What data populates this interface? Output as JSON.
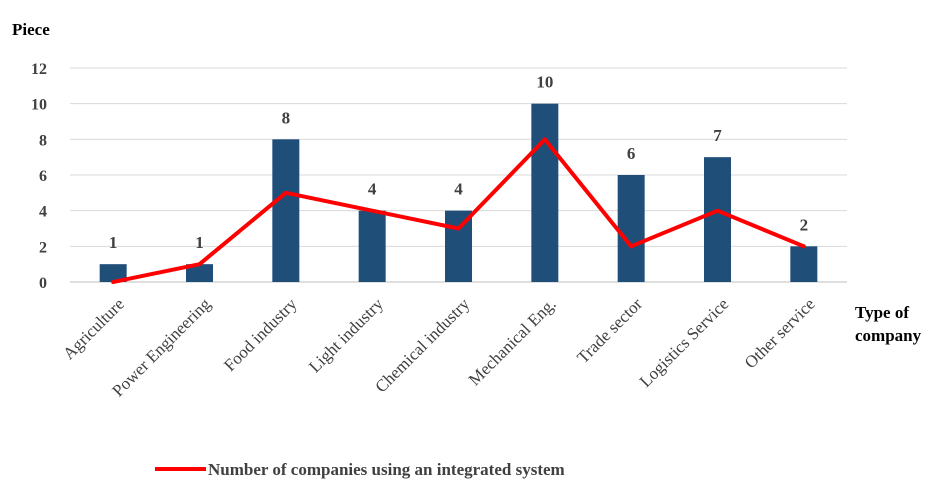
{
  "chart_data": {
    "type": "bar",
    "ylabel": "Piece",
    "xlabel": "Type of company",
    "xlabel_lines": [
      "Type of",
      "company"
    ],
    "ylim": [
      0,
      12
    ],
    "yticks": [
      0,
      2,
      4,
      6,
      8,
      10,
      12
    ],
    "grid": true,
    "categories": [
      "Agriculture",
      "Power Engineering",
      "Food industry",
      "Light industry",
      "Chemical industry",
      "Mechanical Eng.",
      "Trade sector",
      "Logistics Service",
      "Other service"
    ],
    "series": [
      {
        "kind": "bar",
        "values": [
          1,
          1,
          8,
          4,
          4,
          10,
          6,
          7,
          2
        ],
        "data_labels": [
          "1",
          "1",
          "8",
          "4",
          "4",
          "10",
          "6",
          "7",
          "2"
        ],
        "color": "#1F4E79"
      },
      {
        "kind": "line",
        "name": "Number of companies using an integrated system",
        "values": [
          0,
          1,
          5,
          4,
          3,
          8,
          2,
          4,
          2
        ],
        "color": "#FF0000"
      }
    ],
    "legend_position": "bottom",
    "grid_color": "#D9D9D9"
  }
}
